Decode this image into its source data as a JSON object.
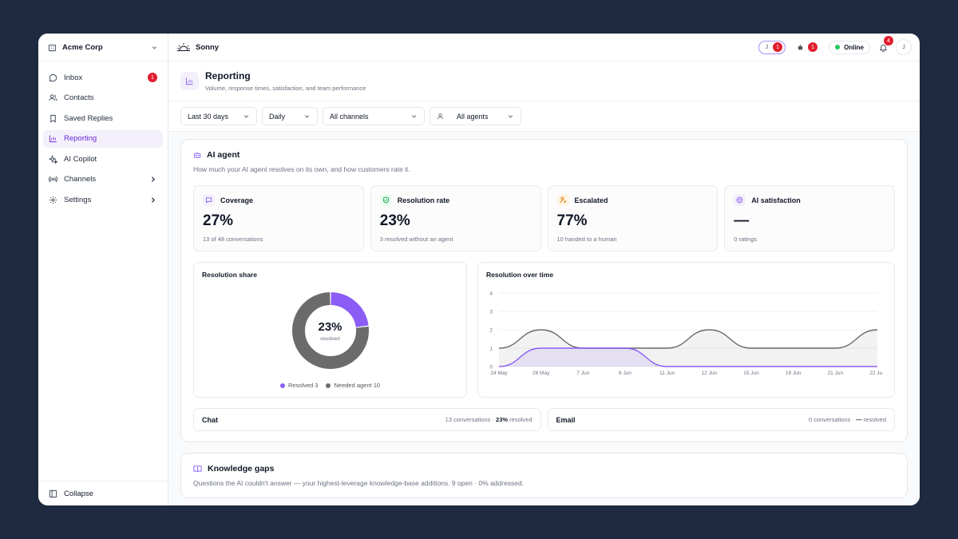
{
  "sidebar": {
    "org_name": "Acme Corp",
    "items": [
      {
        "label": "Inbox",
        "icon": "chat-bubble-icon",
        "badge": "1"
      },
      {
        "label": "Contacts",
        "icon": "users-icon"
      },
      {
        "label": "Saved Replies",
        "icon": "bookmark-icon"
      },
      {
        "label": "Reporting",
        "icon": "bar-chart-icon",
        "active": true
      },
      {
        "label": "AI Copilot",
        "icon": "sparkles-icon"
      },
      {
        "label": "Channels",
        "icon": "broadcast-icon",
        "chevron": true
      },
      {
        "label": "Settings",
        "icon": "gear-icon",
        "chevron": true
      }
    ],
    "collapse_label": "Collapse"
  },
  "topbar": {
    "brand": "Sonny",
    "pill_initial": "J",
    "pill_badge": "1",
    "bot_badge": "1",
    "status": "Online",
    "bell_badge": "4",
    "avatar_initial": "J"
  },
  "page": {
    "title": "Reporting",
    "subtitle": "Volume, response times, satisfaction, and team performance"
  },
  "filters": {
    "range": "Last 30 days",
    "granularity": "Daily",
    "channels": "All channels",
    "agents": "All agents"
  },
  "ai_agent": {
    "title": "AI agent",
    "subtitle": "How much your AI agent resolves on its own, and how customers rate it.",
    "stats": [
      {
        "label": "Coverage",
        "value": "27%",
        "note": "13 of 48 conversations",
        "icon": "chat-bubble-icon",
        "color": "#8b5cf6",
        "bg": "#f3f0fb"
      },
      {
        "label": "Resolution rate",
        "value": "23%",
        "note": "3 resolved without an agent",
        "icon": "shield-check-icon",
        "color": "#16a34a",
        "bg": "#ecfdf3"
      },
      {
        "label": "Escalated",
        "value": "77%",
        "note": "10 handed to a human",
        "icon": "user-escalate-icon",
        "color": "#d97706",
        "bg": "#fff4e5"
      },
      {
        "label": "AI satisfaction",
        "value": "—",
        "note": "0 ratings",
        "icon": "smiley-icon",
        "color": "#8b5cf6",
        "bg": "#f3f0fb"
      }
    ],
    "resolution_share": {
      "title": "Resolution share",
      "center_value": "23%",
      "center_label": "resolved",
      "legend": [
        {
          "label": "Resolved 3",
          "color": "#8b5cf6"
        },
        {
          "label": "Needed agent 10",
          "color": "#6b6b6b"
        }
      ]
    },
    "resolution_over_time": {
      "title": "Resolution over time"
    },
    "channels": [
      {
        "name": "Chat",
        "meta_prefix": "13 conversations · ",
        "meta_value": "23%",
        "meta_suffix": " resolved"
      },
      {
        "name": "Email",
        "meta_prefix": "0 conversations · ",
        "meta_value": "—",
        "meta_suffix": " resolved"
      }
    ]
  },
  "knowledge_gaps": {
    "title": "Knowledge gaps",
    "subtitle": "Questions the AI couldn't answer — your highest-leverage knowledge-base additions. 9 open · 0% addressed."
  },
  "chart_data": [
    {
      "type": "pie",
      "title": "Resolution share",
      "categories": [
        "Resolved",
        "Needed agent"
      ],
      "values": [
        3,
        10
      ]
    },
    {
      "type": "line",
      "title": "Resolution over time",
      "x": [
        "24 May",
        "26 May",
        "7 Jun",
        "8 Jun",
        "11 Jun",
        "12 Jun",
        "15 Jun",
        "19 Jun",
        "21 Jun",
        "22 Jun"
      ],
      "series": [
        {
          "values": [
            1,
            2,
            1,
            1,
            1,
            2,
            1,
            1,
            1,
            2
          ],
          "color": "#6b6b6b"
        },
        {
          "values": [
            0,
            1,
            1,
            1,
            0,
            0,
            0,
            0,
            0,
            0
          ],
          "color": "#8b5cf6"
        }
      ],
      "ylim": [
        0,
        4
      ],
      "yticks": [
        0,
        1,
        2,
        3,
        4
      ]
    }
  ]
}
